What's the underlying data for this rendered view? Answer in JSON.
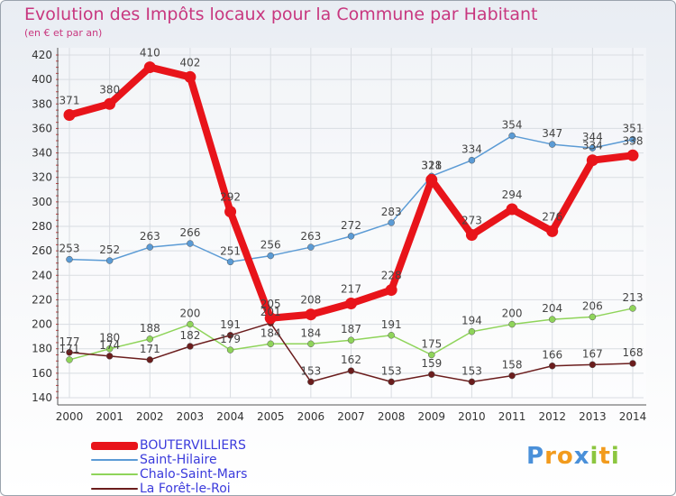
{
  "header": {
    "title": "Evolution des Impôts locaux pour la Commune par Habitant",
    "subtitle": "(en € et par an)"
  },
  "colors": {
    "title": "#c8377f",
    "axis_text": "#333333",
    "legend_text": "#3b3bdc",
    "grid": "#d9dde2"
  },
  "chart_data": {
    "type": "line",
    "title": "Evolution des Impôts locaux pour la Commune par Habitant",
    "subtitle": "(en € et par an)",
    "x": [
      2000,
      2001,
      2002,
      2003,
      2004,
      2005,
      2006,
      2007,
      2008,
      2009,
      2010,
      2011,
      2012,
      2013,
      2014
    ],
    "x_tick_labels": [
      "2000",
      "2001",
      "2002",
      "2003",
      "2004",
      "2005",
      "2006",
      "2007",
      "2008",
      "2009",
      "2010",
      "2011",
      "2012",
      "2013",
      "2014"
    ],
    "ylim": [
      140,
      420
    ],
    "y_ticks": [
      140,
      160,
      180,
      200,
      220,
      240,
      260,
      280,
      300,
      320,
      340,
      360,
      380,
      400,
      420
    ],
    "y_tick_labels": [
      "140",
      "160",
      "180",
      "200",
      "220",
      "240",
      "260",
      "280",
      "300",
      "320",
      "340",
      "360",
      "380",
      "400",
      "420"
    ],
    "grid": true,
    "legend_position": "bottom-left",
    "series": [
      {
        "name": "BOUTERVILLIERS",
        "color": "#e8141a",
        "emphasis": true,
        "values": [
          371,
          380,
          410,
          402,
          292,
          205,
          208,
          217,
          228,
          318,
          273,
          294,
          276,
          334,
          338
        ]
      },
      {
        "name": "Saint-Hilaire",
        "color": "#5b9bd5",
        "emphasis": false,
        "values": [
          253,
          252,
          263,
          266,
          251,
          256,
          263,
          272,
          283,
          321,
          334,
          354,
          347,
          344,
          351
        ]
      },
      {
        "name": "Chalo-Saint-Mars",
        "color": "#8fd45a",
        "emphasis": false,
        "values": [
          171,
          180,
          188,
          200,
          179,
          184,
          184,
          187,
          191,
          175,
          194,
          200,
          204,
          206,
          213
        ]
      },
      {
        "name": "La Forêt-le-Roi",
        "color": "#6b1d1d",
        "emphasis": false,
        "values": [
          177,
          174,
          171,
          182,
          191,
          201,
          153,
          162,
          153,
          159,
          153,
          158,
          166,
          167,
          168
        ]
      }
    ]
  },
  "logo": {
    "letters": [
      "P",
      "r",
      "o",
      "x",
      "i",
      "t",
      "i"
    ],
    "colors": [
      "#4a90d9",
      "#f29b1d",
      "#f29b1d",
      "#4a90d9",
      "#8cc63f",
      "#f29b1d",
      "#8cc63f"
    ]
  }
}
